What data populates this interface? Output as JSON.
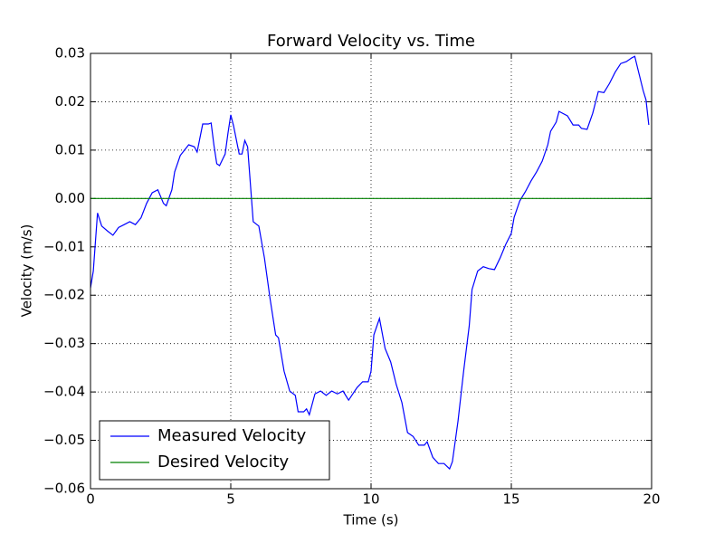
{
  "chart_data": {
    "type": "line",
    "title": "Forward Velocity vs. Time",
    "x_label": "Time (s)",
    "y_label": "Velocity (m/s)",
    "xlim": [
      0,
      20
    ],
    "xticks": [
      0,
      5,
      10,
      15,
      20
    ],
    "ylim": [
      -0.06,
      0.03
    ],
    "yticks": [
      {
        "value": -0.06,
        "label": "−0.06"
      },
      {
        "value": -0.05,
        "label": "−0.05"
      },
      {
        "value": -0.04,
        "label": "−0.04"
      },
      {
        "value": -0.03,
        "label": "−0.03"
      },
      {
        "value": -0.02,
        "label": "−0.02"
      },
      {
        "value": -0.01,
        "label": "−0.01"
      },
      {
        "value": 0,
        "label": "0.00"
      },
      0.01,
      0.02,
      0.03
    ],
    "grid": true,
    "legend": "lower left",
    "series": [
      {
        "name": "Measured Velocity",
        "color": "#0000ff",
        "x": [
          0,
          0.1,
          0.25,
          0.4,
          0.6,
          0.8,
          1.0,
          1.2,
          1.4,
          1.6,
          1.8,
          2.0,
          2.2,
          2.4,
          2.6,
          2.7,
          2.9,
          3.0,
          3.2,
          3.5,
          3.7,
          3.8,
          4.0,
          4.2,
          4.3,
          4.4,
          4.5,
          4.6,
          4.8,
          4.9,
          5.0,
          5.1,
          5.3,
          5.4,
          5.5,
          5.6,
          5.8,
          6.0,
          6.2,
          6.4,
          6.6,
          6.7,
          6.9,
          7.1,
          7.3,
          7.4,
          7.6,
          7.7,
          7.8,
          8.0,
          8.2,
          8.4,
          8.6,
          8.8,
          9.0,
          9.2,
          9.5,
          9.7,
          9.9,
          10.0,
          10.1,
          10.3,
          10.5,
          10.7,
          10.9,
          11.1,
          11.3,
          11.5,
          11.7,
          11.9,
          12.0,
          12.2,
          12.4,
          12.6,
          12.8,
          12.9,
          13.1,
          13.3,
          13.5,
          13.6,
          13.8,
          14.0,
          14.2,
          14.4,
          14.6,
          14.8,
          15.0,
          15.1,
          15.3,
          15.5,
          15.7,
          15.9,
          16.1,
          16.3,
          16.4,
          16.6,
          16.7,
          17.0,
          17.2,
          17.4,
          17.5,
          17.7,
          17.9,
          18.1,
          18.3,
          18.5,
          18.7,
          18.9,
          19.1,
          19.3,
          19.4,
          19.5,
          19.7,
          19.8,
          19.9
        ],
        "values": [
          -0.0185,
          -0.015,
          -0.003,
          -0.0057,
          -0.0067,
          -0.0076,
          -0.006,
          -0.0054,
          -0.0048,
          -0.0054,
          -0.004,
          -0.001,
          0.0012,
          0.0018,
          -0.001,
          -0.0015,
          0.0018,
          0.0055,
          0.0089,
          0.0111,
          0.0107,
          0.0096,
          0.0154,
          0.0154,
          0.0156,
          0.011,
          0.0072,
          0.0068,
          0.0092,
          0.0135,
          0.0173,
          0.015,
          0.0092,
          0.0092,
          0.012,
          0.0107,
          -0.0048,
          -0.0057,
          -0.0123,
          -0.0207,
          -0.0282,
          -0.0288,
          -0.0357,
          -0.0398,
          -0.0407,
          -0.0441,
          -0.0441,
          -0.0435,
          -0.0447,
          -0.0404,
          -0.0398,
          -0.0407,
          -0.0398,
          -0.0404,
          -0.0398,
          -0.0417,
          -0.0391,
          -0.0379,
          -0.0379,
          -0.0357,
          -0.0282,
          -0.0248,
          -0.031,
          -0.0338,
          -0.0385,
          -0.0422,
          -0.0484,
          -0.0492,
          -0.051,
          -0.051,
          -0.0503,
          -0.0535,
          -0.0548,
          -0.0548,
          -0.0559,
          -0.0544,
          -0.046,
          -0.0357,
          -0.0263,
          -0.0188,
          -0.015,
          -0.0141,
          -0.0145,
          -0.0147,
          -0.0123,
          -0.0095,
          -0.0072,
          -0.0039,
          -0.0005,
          0.0014,
          0.0036,
          0.0055,
          0.0077,
          0.0111,
          0.0139,
          0.0158,
          0.018,
          0.0171,
          0.0152,
          0.0152,
          0.0145,
          0.0143,
          0.0176,
          0.0221,
          0.0219,
          0.0238,
          0.0261,
          0.0279,
          0.0283,
          0.0291,
          0.0294,
          0.027,
          0.0223,
          0.0204,
          0.0152
        ]
      },
      {
        "name": "Desired Velocity",
        "color": "#008000",
        "x": [
          0,
          20
        ],
        "values": [
          0,
          0
        ]
      }
    ]
  }
}
